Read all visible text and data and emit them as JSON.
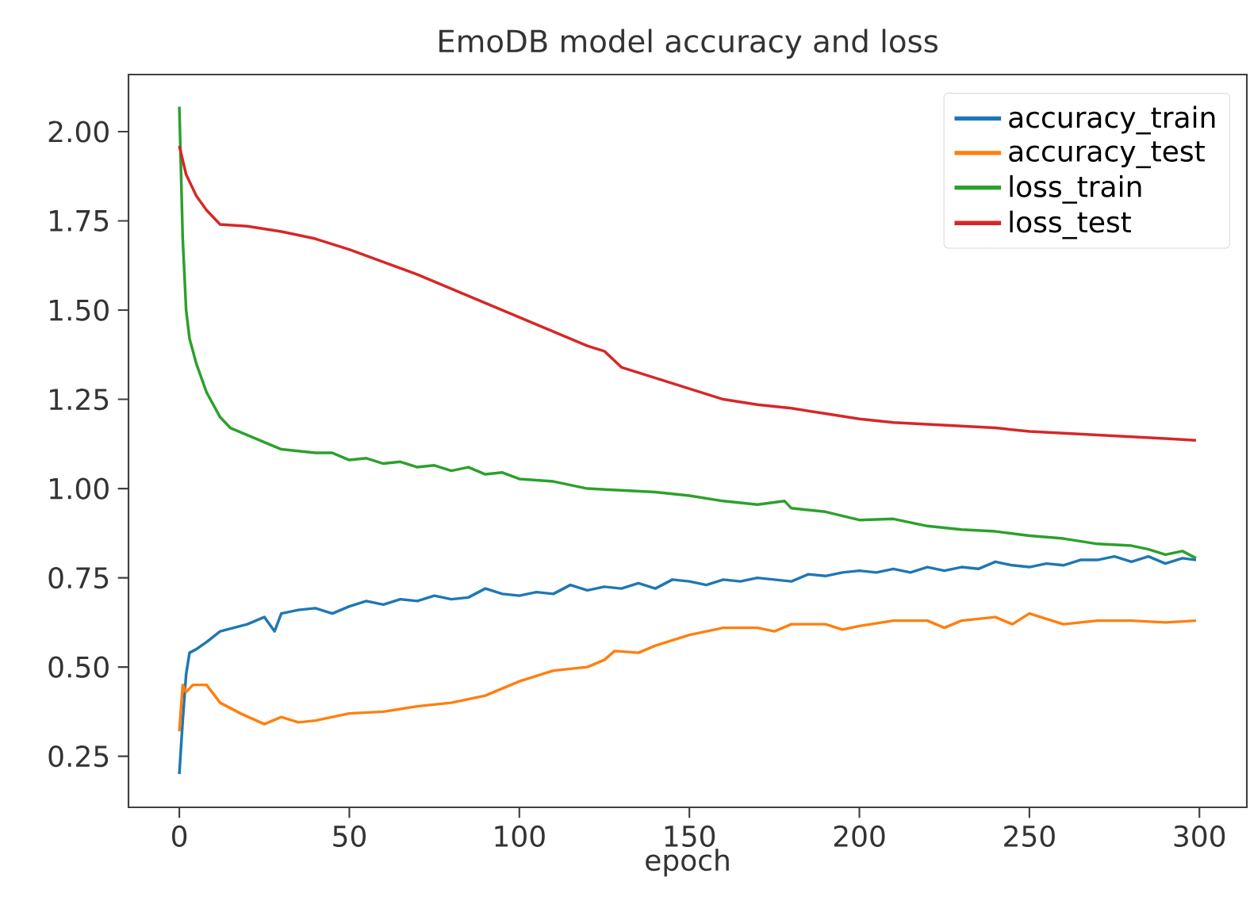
{
  "chart_data": {
    "type": "line",
    "title": "EmoDB model accuracy and loss",
    "xlabel": "epoch",
    "xlim": [
      -14.95,
      313.95
    ],
    "ylim": [
      0.107,
      2.16
    ],
    "xticks": [
      0,
      50,
      100,
      150,
      200,
      250,
      300
    ],
    "yticks": [
      {
        "value": 0.25,
        "label": "0.25"
      },
      {
        "value": 0.5,
        "label": "0.50"
      },
      {
        "value": 0.75,
        "label": "0.75"
      },
      {
        "value": 1.0,
        "label": "1.00"
      },
      {
        "value": 1.25,
        "label": "1.25"
      },
      {
        "value": 1.5,
        "label": "1.50"
      },
      {
        "value": 1.75,
        "label": "1.75"
      },
      {
        "value": 2.0,
        "label": "2.00"
      }
    ],
    "grid": false,
    "legend": "top right",
    "marker": "none",
    "line_style": "solid",
    "series": [
      {
        "name": "accuracy_train",
        "color": "#1f77b4",
        "x": [
          0,
          1,
          2,
          3,
          5,
          8,
          12,
          16,
          20,
          25,
          28,
          30,
          35,
          40,
          45,
          50,
          55,
          60,
          65,
          70,
          75,
          80,
          85,
          90,
          95,
          100,
          105,
          110,
          115,
          120,
          125,
          130,
          135,
          140,
          145,
          150,
          155,
          160,
          165,
          170,
          175,
          180,
          185,
          190,
          195,
          200,
          205,
          210,
          215,
          220,
          225,
          230,
          235,
          240,
          245,
          250,
          255,
          260,
          265,
          270,
          275,
          280,
          285,
          290,
          295,
          299
        ],
        "values": [
          0.2,
          0.35,
          0.48,
          0.54,
          0.55,
          0.57,
          0.6,
          0.61,
          0.62,
          0.64,
          0.6,
          0.65,
          0.66,
          0.665,
          0.65,
          0.67,
          0.685,
          0.675,
          0.69,
          0.685,
          0.7,
          0.69,
          0.695,
          0.72,
          0.705,
          0.7,
          0.71,
          0.705,
          0.73,
          0.715,
          0.725,
          0.72,
          0.735,
          0.72,
          0.745,
          0.74,
          0.73,
          0.745,
          0.74,
          0.75,
          0.745,
          0.74,
          0.76,
          0.755,
          0.765,
          0.77,
          0.765,
          0.775,
          0.765,
          0.78,
          0.77,
          0.78,
          0.775,
          0.795,
          0.785,
          0.78,
          0.79,
          0.785,
          0.8,
          0.8,
          0.81,
          0.795,
          0.81,
          0.79,
          0.805,
          0.8
        ]
      },
      {
        "name": "accuracy_test",
        "color": "#ff7f0e",
        "x": [
          0,
          1,
          2,
          4,
          8,
          12,
          18,
          25,
          30,
          35,
          40,
          50,
          60,
          70,
          80,
          90,
          100,
          110,
          120,
          125,
          128,
          135,
          140,
          145,
          150,
          155,
          160,
          170,
          175,
          180,
          190,
          195,
          200,
          210,
          220,
          225,
          230,
          240,
          245,
          250,
          255,
          260,
          270,
          280,
          290,
          299
        ],
        "values": [
          0.32,
          0.45,
          0.43,
          0.45,
          0.45,
          0.4,
          0.37,
          0.34,
          0.36,
          0.345,
          0.35,
          0.37,
          0.375,
          0.39,
          0.4,
          0.42,
          0.46,
          0.49,
          0.5,
          0.52,
          0.545,
          0.54,
          0.56,
          0.575,
          0.59,
          0.6,
          0.61,
          0.61,
          0.6,
          0.62,
          0.62,
          0.605,
          0.615,
          0.63,
          0.63,
          0.61,
          0.63,
          0.64,
          0.62,
          0.65,
          0.635,
          0.62,
          0.63,
          0.63,
          0.625,
          0.63
        ]
      },
      {
        "name": "loss_train",
        "color": "#2ca02c",
        "x": [
          0,
          1,
          2,
          3,
          5,
          8,
          12,
          15,
          20,
          25,
          30,
          35,
          40,
          45,
          50,
          55,
          60,
          65,
          70,
          75,
          80,
          85,
          90,
          95,
          100,
          110,
          120,
          130,
          140,
          150,
          160,
          170,
          178,
          180,
          190,
          200,
          210,
          220,
          230,
          240,
          250,
          260,
          270,
          280,
          285,
          290,
          295,
          299
        ],
        "values": [
          2.07,
          1.7,
          1.5,
          1.42,
          1.35,
          1.27,
          1.2,
          1.17,
          1.15,
          1.13,
          1.11,
          1.105,
          1.1,
          1.1,
          1.08,
          1.085,
          1.07,
          1.075,
          1.06,
          1.065,
          1.05,
          1.06,
          1.04,
          1.045,
          1.027,
          1.02,
          1.0,
          0.995,
          0.99,
          0.98,
          0.965,
          0.955,
          0.965,
          0.945,
          0.935,
          0.912,
          0.915,
          0.895,
          0.885,
          0.88,
          0.868,
          0.86,
          0.845,
          0.84,
          0.83,
          0.815,
          0.825,
          0.805
        ]
      },
      {
        "name": "loss_test",
        "color": "#d62728",
        "x": [
          0,
          2,
          5,
          8,
          12,
          20,
          30,
          40,
          50,
          60,
          70,
          80,
          90,
          100,
          110,
          120,
          125,
          130,
          140,
          150,
          160,
          170,
          180,
          190,
          200,
          210,
          220,
          230,
          240,
          250,
          260,
          270,
          280,
          290,
          299
        ],
        "values": [
          1.96,
          1.88,
          1.82,
          1.78,
          1.74,
          1.735,
          1.72,
          1.7,
          1.67,
          1.635,
          1.6,
          1.56,
          1.52,
          1.48,
          1.44,
          1.4,
          1.385,
          1.34,
          1.31,
          1.28,
          1.25,
          1.235,
          1.225,
          1.21,
          1.195,
          1.185,
          1.18,
          1.175,
          1.17,
          1.16,
          1.155,
          1.15,
          1.145,
          1.14,
          1.135
        ]
      }
    ]
  }
}
